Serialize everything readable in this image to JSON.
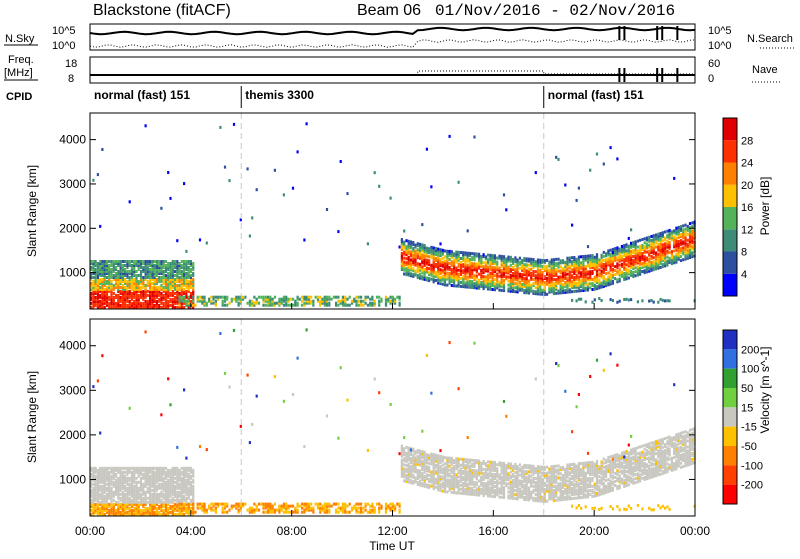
{
  "header": {
    "radar": "Blackstone (fitACF)",
    "beam": "Beam 06",
    "dates": "01/Nov/2016 - 02/Nov/2016"
  },
  "top_panels": {
    "nsky_label": "N.Sky",
    "nsky_ticks": [
      "10^5",
      "10^0"
    ],
    "nsearch_label": "N.Search",
    "nsearch_ticks": [
      "10^5",
      "10^0"
    ],
    "freq_label_1": "Freq.",
    "freq_label_2": "[MHz]",
    "freq_ticks": [
      "18",
      "8"
    ],
    "nave_label": "Nave",
    "nave_ticks": [
      "60",
      "0"
    ],
    "cpid_label": "CPID",
    "cpid_segments": [
      {
        "label": "normal (fast) 151",
        "start_h": 0,
        "end_h": 6
      },
      {
        "label": "themis 3300",
        "start_h": 6,
        "end_h": 18
      },
      {
        "label": "normal (fast) 151",
        "start_h": 18,
        "end_h": 24
      }
    ]
  },
  "chart_data": [
    {
      "type": "heatmap",
      "name": "Power",
      "xlabel": "",
      "ylabel": "Slant Range [km]",
      "x_range_hours": [
        0,
        24
      ],
      "ylim": [
        180,
        4600
      ],
      "yticks": [
        1000,
        2000,
        3000,
        4000
      ],
      "colorbar": {
        "label": "Power [dB]",
        "ticks": [
          4,
          8,
          12,
          16,
          20,
          24,
          28
        ],
        "colors": [
          "#0000ff",
          "#2d4fa0",
          "#3c8c78",
          "#52b35a",
          "#ffc000",
          "#ff8000",
          "#ff3000",
          "#e00000"
        ]
      },
      "features": [
        {
          "region": "near-range band",
          "start_h": 0,
          "end_h": 4,
          "range_km": [
            300,
            1300
          ],
          "power_db": 20
        },
        {
          "region": "ground scatter",
          "start_h": 4,
          "end_h": 12,
          "range_km": [
            350,
            500
          ],
          "power_db": 16
        },
        {
          "region": "main echo band",
          "start_h": 12.3,
          "end_h": 24,
          "center_range_km": [
            1400,
            1050,
            900,
            1200,
            1800
          ],
          "power_db": 24
        }
      ]
    },
    {
      "type": "heatmap",
      "name": "Velocity",
      "xlabel": "Time UT",
      "ylabel": "Slant Range [km]",
      "x_range_hours": [
        0,
        24
      ],
      "ylim": [
        180,
        4600
      ],
      "yticks": [
        1000,
        2000,
        3000,
        4000
      ],
      "xticks": [
        "00:00",
        "04:00",
        "08:00",
        "12:00",
        "16:00",
        "20:00",
        "00:00"
      ],
      "colorbar": {
        "label": "Velocity [m s^-1]",
        "ticks": [
          "200",
          "100",
          "50",
          "15",
          "-15",
          "-50",
          "-100",
          "-200"
        ],
        "colors": [
          "#2030c0",
          "#3070e0",
          "#30a030",
          "#70d040",
          "#c8c8c0",
          "#ffc000",
          "#ff8000",
          "#ff4000",
          "#ff0000"
        ]
      },
      "features": [
        {
          "region": "near-range band",
          "start_h": 0,
          "end_h": 4,
          "velocity": "ground scatter (grey)"
        },
        {
          "region": "low band",
          "start_h": 0,
          "end_h": 12,
          "velocity": "-50"
        },
        {
          "region": "main echo band",
          "start_h": 12.3,
          "end_h": 24,
          "velocity": "ground scatter (grey)"
        }
      ]
    }
  ]
}
